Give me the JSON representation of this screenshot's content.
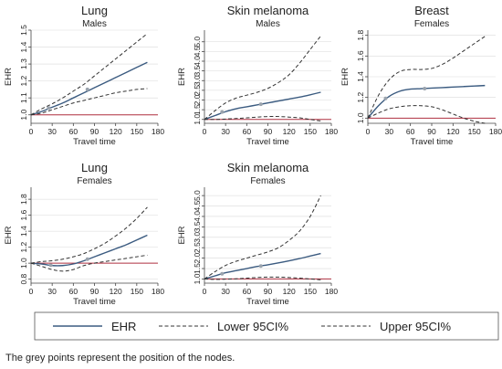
{
  "footnote": "The grey points represent the position of the nodes.",
  "colors": {
    "ehr": "#3b5b80",
    "ci": "#333333",
    "reference": "#b03040",
    "node": "#9aa3ad",
    "grid": "#d9d9d9",
    "axis": "#444444"
  },
  "legend": {
    "ehr": "EHR",
    "lower": "Lower 95CI%",
    "upper": "Upper 95CI%"
  },
  "chart_data": [
    {
      "type": "line",
      "title": "Lung",
      "subtitle": "Males",
      "xlabel": "Travel time",
      "ylabel": "EHR",
      "xlim": [
        0,
        180
      ],
      "ylim": [
        0.95,
        1.5
      ],
      "xticks": [
        0,
        30,
        60,
        90,
        120,
        150,
        180
      ],
      "yticks": [
        1.0,
        1.1,
        1.2,
        1.3,
        1.4,
        1.5
      ],
      "ytick_labels": [
        "1.0",
        "1.1",
        "1.2",
        "1.3",
        "1.4",
        "1.5"
      ],
      "reference_line": 1.0,
      "x": [
        0,
        15,
        30,
        45,
        60,
        75,
        90,
        105,
        120,
        135,
        150,
        165
      ],
      "series": [
        {
          "name": "EHR",
          "values": [
            1.0,
            1.02,
            1.045,
            1.07,
            1.1,
            1.13,
            1.16,
            1.19,
            1.22,
            1.25,
            1.28,
            1.31
          ]
        },
        {
          "name": "Lower 95CI%",
          "values": [
            1.0,
            1.01,
            1.03,
            1.05,
            1.07,
            1.085,
            1.1,
            1.115,
            1.13,
            1.14,
            1.15,
            1.155
          ]
        },
        {
          "name": "Upper 95CI%",
          "values": [
            1.0,
            1.035,
            1.065,
            1.1,
            1.14,
            1.18,
            1.23,
            1.28,
            1.33,
            1.38,
            1.43,
            1.48
          ]
        }
      ],
      "nodes": [
        [
          25,
          1.04
        ],
        [
          80,
          1.15
        ]
      ]
    },
    {
      "type": "line",
      "title": "Skin melanoma",
      "subtitle": "Males",
      "xlabel": "Travel time",
      "ylabel": "EHR",
      "xlim": [
        0,
        180
      ],
      "ylim": [
        0.8,
        5.6
      ],
      "xticks": [
        0,
        30,
        60,
        90,
        120,
        150,
        180
      ],
      "yticks": [
        1.0,
        1.5,
        2.0,
        2.5,
        3.0,
        3.5,
        4.0,
        4.5,
        5.0
      ],
      "ytick_labels": [
        "1.0",
        "1.5",
        "2.0",
        "2.5",
        "3.0",
        "3.5",
        "4.0",
        "4.5",
        "5.0"
      ],
      "reference_line": 1.0,
      "x": [
        0,
        15,
        30,
        45,
        60,
        75,
        90,
        105,
        120,
        135,
        150,
        165
      ],
      "series": [
        {
          "name": "EHR",
          "values": [
            1.0,
            1.2,
            1.4,
            1.55,
            1.65,
            1.75,
            1.85,
            1.95,
            2.05,
            2.15,
            2.27,
            2.4
          ]
        },
        {
          "name": "Lower 95CI%",
          "values": [
            1.0,
            1.0,
            1.02,
            1.05,
            1.08,
            1.12,
            1.15,
            1.15,
            1.12,
            1.08,
            1.0,
            0.92
          ]
        },
        {
          "name": "Upper 95CI%",
          "values": [
            1.0,
            1.45,
            1.85,
            2.1,
            2.25,
            2.4,
            2.6,
            2.9,
            3.3,
            3.9,
            4.6,
            5.3
          ]
        }
      ],
      "nodes": [
        [
          25,
          1.38
        ],
        [
          80,
          1.78
        ]
      ]
    },
    {
      "type": "line",
      "title": "Breast",
      "subtitle": "Females",
      "xlabel": "Travel time",
      "ylabel": "EHR",
      "xlim": [
        0,
        180
      ],
      "ylim": [
        0.95,
        1.85
      ],
      "xticks": [
        0,
        30,
        60,
        90,
        120,
        150,
        180
      ],
      "yticks": [
        1.0,
        1.2,
        1.4,
        1.6,
        1.8
      ],
      "ytick_labels": [
        "1.0",
        "1.2",
        "1.4",
        "1.6",
        "1.8"
      ],
      "reference_line": 1.0,
      "x": [
        0,
        15,
        30,
        45,
        60,
        75,
        90,
        105,
        120,
        135,
        150,
        165
      ],
      "series": [
        {
          "name": "EHR",
          "values": [
            1.0,
            1.12,
            1.21,
            1.26,
            1.28,
            1.285,
            1.29,
            1.295,
            1.3,
            1.305,
            1.31,
            1.315
          ]
        },
        {
          "name": "Lower 95CI%",
          "values": [
            1.0,
            1.05,
            1.09,
            1.11,
            1.12,
            1.12,
            1.11,
            1.08,
            1.04,
            1.0,
            0.97,
            0.95
          ]
        },
        {
          "name": "Upper 95CI%",
          "values": [
            1.0,
            1.22,
            1.37,
            1.45,
            1.47,
            1.47,
            1.48,
            1.52,
            1.58,
            1.65,
            1.72,
            1.79
          ]
        }
      ],
      "nodes": [
        [
          25,
          1.19
        ],
        [
          80,
          1.285
        ]
      ]
    },
    {
      "type": "line",
      "title": "Lung",
      "subtitle": "Females",
      "xlabel": "Travel time",
      "ylabel": "EHR",
      "xlim": [
        0,
        180
      ],
      "ylim": [
        0.75,
        1.95
      ],
      "xticks": [
        0,
        30,
        60,
        90,
        120,
        150,
        180
      ],
      "yticks": [
        0.8,
        1.0,
        1.2,
        1.4,
        1.6,
        1.8
      ],
      "ytick_labels": [
        "0.8",
        "1.0",
        "1.2",
        "1.4",
        "1.6",
        "1.8"
      ],
      "reference_line": 1.0,
      "x": [
        0,
        15,
        30,
        45,
        60,
        75,
        90,
        105,
        120,
        135,
        150,
        165
      ],
      "series": [
        {
          "name": "EHR",
          "values": [
            1.0,
            0.99,
            0.97,
            0.97,
            0.99,
            1.03,
            1.08,
            1.13,
            1.18,
            1.23,
            1.29,
            1.35
          ]
        },
        {
          "name": "Lower 95CI%",
          "values": [
            1.0,
            0.96,
            0.92,
            0.9,
            0.92,
            0.97,
            1.0,
            1.02,
            1.04,
            1.06,
            1.08,
            1.1
          ]
        },
        {
          "name": "Upper 95CI%",
          "values": [
            1.0,
            1.02,
            1.03,
            1.05,
            1.08,
            1.12,
            1.18,
            1.25,
            1.34,
            1.44,
            1.56,
            1.7
          ]
        }
      ],
      "nodes": [
        [
          28,
          0.975
        ],
        [
          80,
          1.05
        ]
      ]
    },
    {
      "type": "line",
      "title": "Skin melanoma",
      "subtitle": "Females",
      "xlabel": "Travel time",
      "ylabel": "EHR",
      "xlim": [
        0,
        180
      ],
      "ylim": [
        0.8,
        5.4
      ],
      "xticks": [
        0,
        30,
        60,
        90,
        120,
        150,
        180
      ],
      "yticks": [
        1.0,
        1.5,
        2.0,
        2.5,
        3.0,
        3.5,
        4.0,
        4.5,
        5.0
      ],
      "ytick_labels": [
        "1.0",
        "1.5",
        "2.0",
        "2.5",
        "3.0",
        "3.5",
        "4.0",
        "4.5",
        "5.0"
      ],
      "reference_line": 1.0,
      "x": [
        0,
        15,
        30,
        45,
        60,
        75,
        90,
        105,
        120,
        135,
        150,
        165
      ],
      "series": [
        {
          "name": "EHR",
          "values": [
            1.0,
            1.15,
            1.3,
            1.4,
            1.5,
            1.6,
            1.68,
            1.77,
            1.87,
            1.98,
            2.1,
            2.22
          ]
        },
        {
          "name": "Lower 95CI%",
          "values": [
            1.0,
            0.98,
            0.99,
            1.01,
            1.04,
            1.07,
            1.09,
            1.09,
            1.07,
            1.04,
            1.0,
            0.96
          ]
        },
        {
          "name": "Upper 95CI%",
          "values": [
            1.0,
            1.35,
            1.65,
            1.85,
            2.0,
            2.15,
            2.3,
            2.5,
            2.85,
            3.3,
            4.0,
            5.0
          ]
        }
      ],
      "nodes": [
        [
          25,
          1.25
        ],
        [
          80,
          1.62
        ]
      ]
    }
  ]
}
